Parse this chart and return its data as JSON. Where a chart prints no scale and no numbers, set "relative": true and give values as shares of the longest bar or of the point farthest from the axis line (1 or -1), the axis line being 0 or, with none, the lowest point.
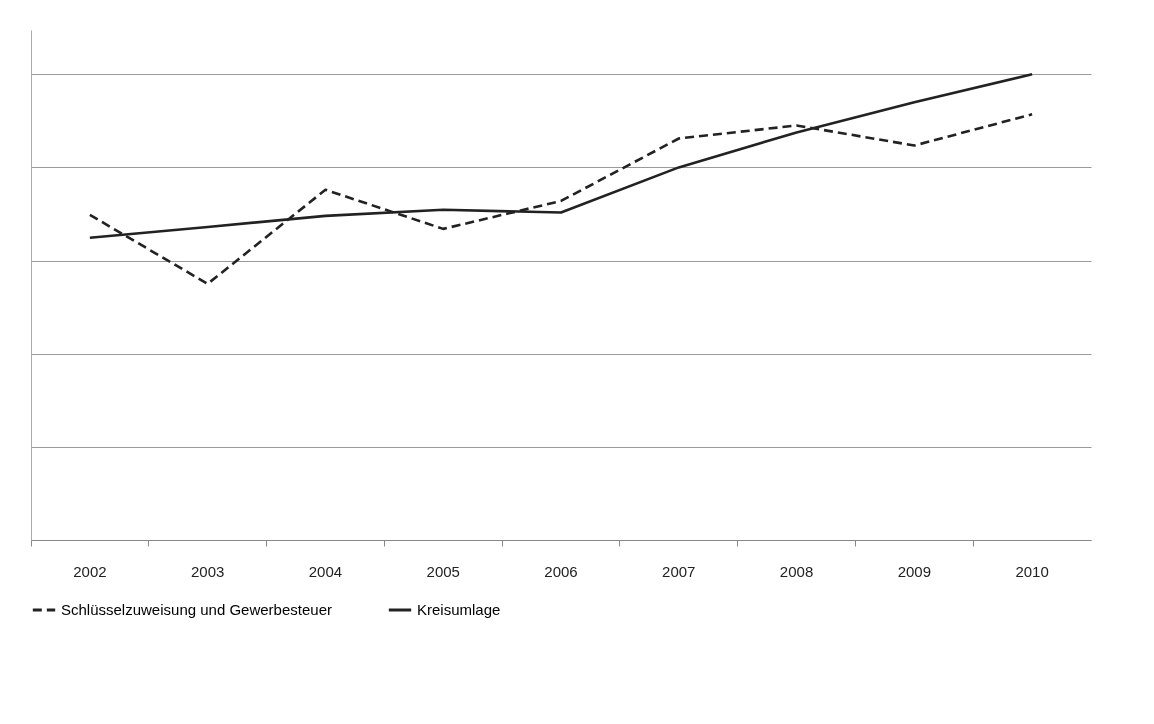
{
  "chart_data": {
    "type": "line",
    "relative": true,
    "categories": [
      "2002",
      "2003",
      "2004",
      "2005",
      "2006",
      "2007",
      "2008",
      "2009",
      "2010"
    ],
    "grid": "y",
    "legend": "bottom",
    "series": [
      {
        "name": "Schlüsselzuweisung und Gewerbesteuer",
        "color": "#222222",
        "line_style": "dashed",
        "values": [
          0.698,
          0.55,
          0.752,
          0.668,
          0.728,
          0.862,
          0.89,
          0.847,
          0.914
        ]
      },
      {
        "name": "Kreisumlage",
        "color": "#222222",
        "line_style": "solid",
        "values": [
          0.649,
          0.672,
          0.696,
          0.709,
          0.703,
          0.8,
          0.875,
          0.94,
          1
        ]
      }
    ]
  }
}
